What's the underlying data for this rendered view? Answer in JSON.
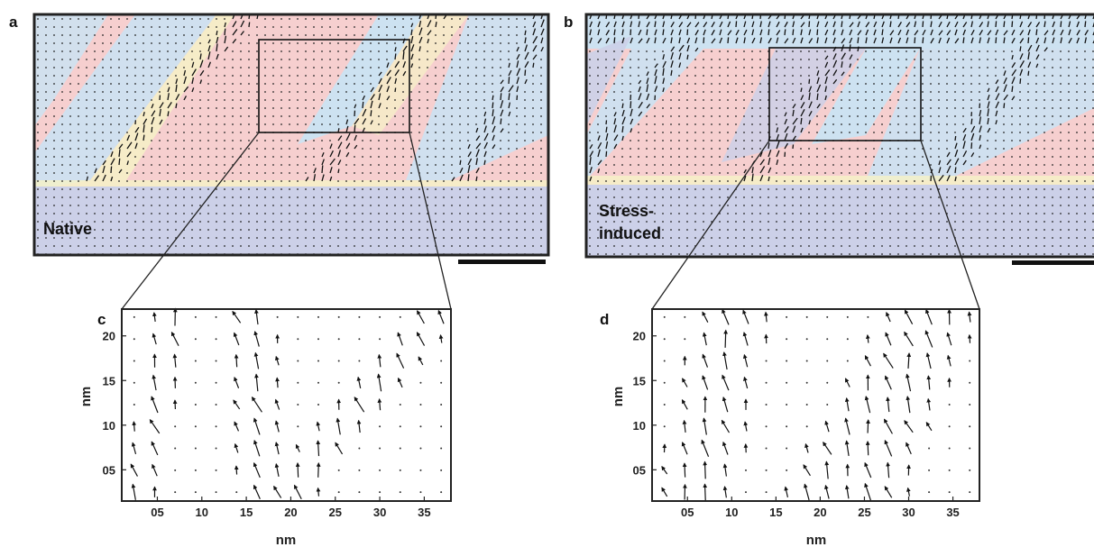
{
  "figure": {
    "panels": [
      {
        "id": "a",
        "letter": "a",
        "label_lines": [
          "Native"
        ]
      },
      {
        "id": "b",
        "letter": "b",
        "label_lines": [
          "Stress-",
          "induced"
        ]
      },
      {
        "id": "c",
        "letter": "c"
      },
      {
        "id": "d",
        "letter": "d"
      }
    ],
    "colors": {
      "red_domain": "#f6cfcf",
      "blue_domain": "#c9e3f4",
      "yellow_domain": "#f6f2c6",
      "substrate": "#ccd0e8",
      "arrow": "#111111",
      "frame": "#222222"
    }
  },
  "chart_data": [
    {
      "panel": "c",
      "type": "scatter",
      "title": "",
      "xlabel": "nm",
      "ylabel": "nm",
      "xlim": [
        1,
        38
      ],
      "ylim": [
        1.5,
        23
      ],
      "xticks": [
        "05",
        "10",
        "15",
        "20",
        "25",
        "30",
        "35"
      ],
      "yticks": [
        "05",
        "10",
        "15",
        "20"
      ]
    },
    {
      "panel": "d",
      "type": "scatter",
      "title": "",
      "xlabel": "nm",
      "ylabel": "nm",
      "xlim": [
        1,
        38
      ],
      "ylim": [
        1.5,
        23
      ],
      "xticks": [
        "05",
        "10",
        "15",
        "20",
        "25",
        "30",
        "35"
      ],
      "yticks": [
        "05",
        "10",
        "15",
        "20"
      ]
    }
  ]
}
